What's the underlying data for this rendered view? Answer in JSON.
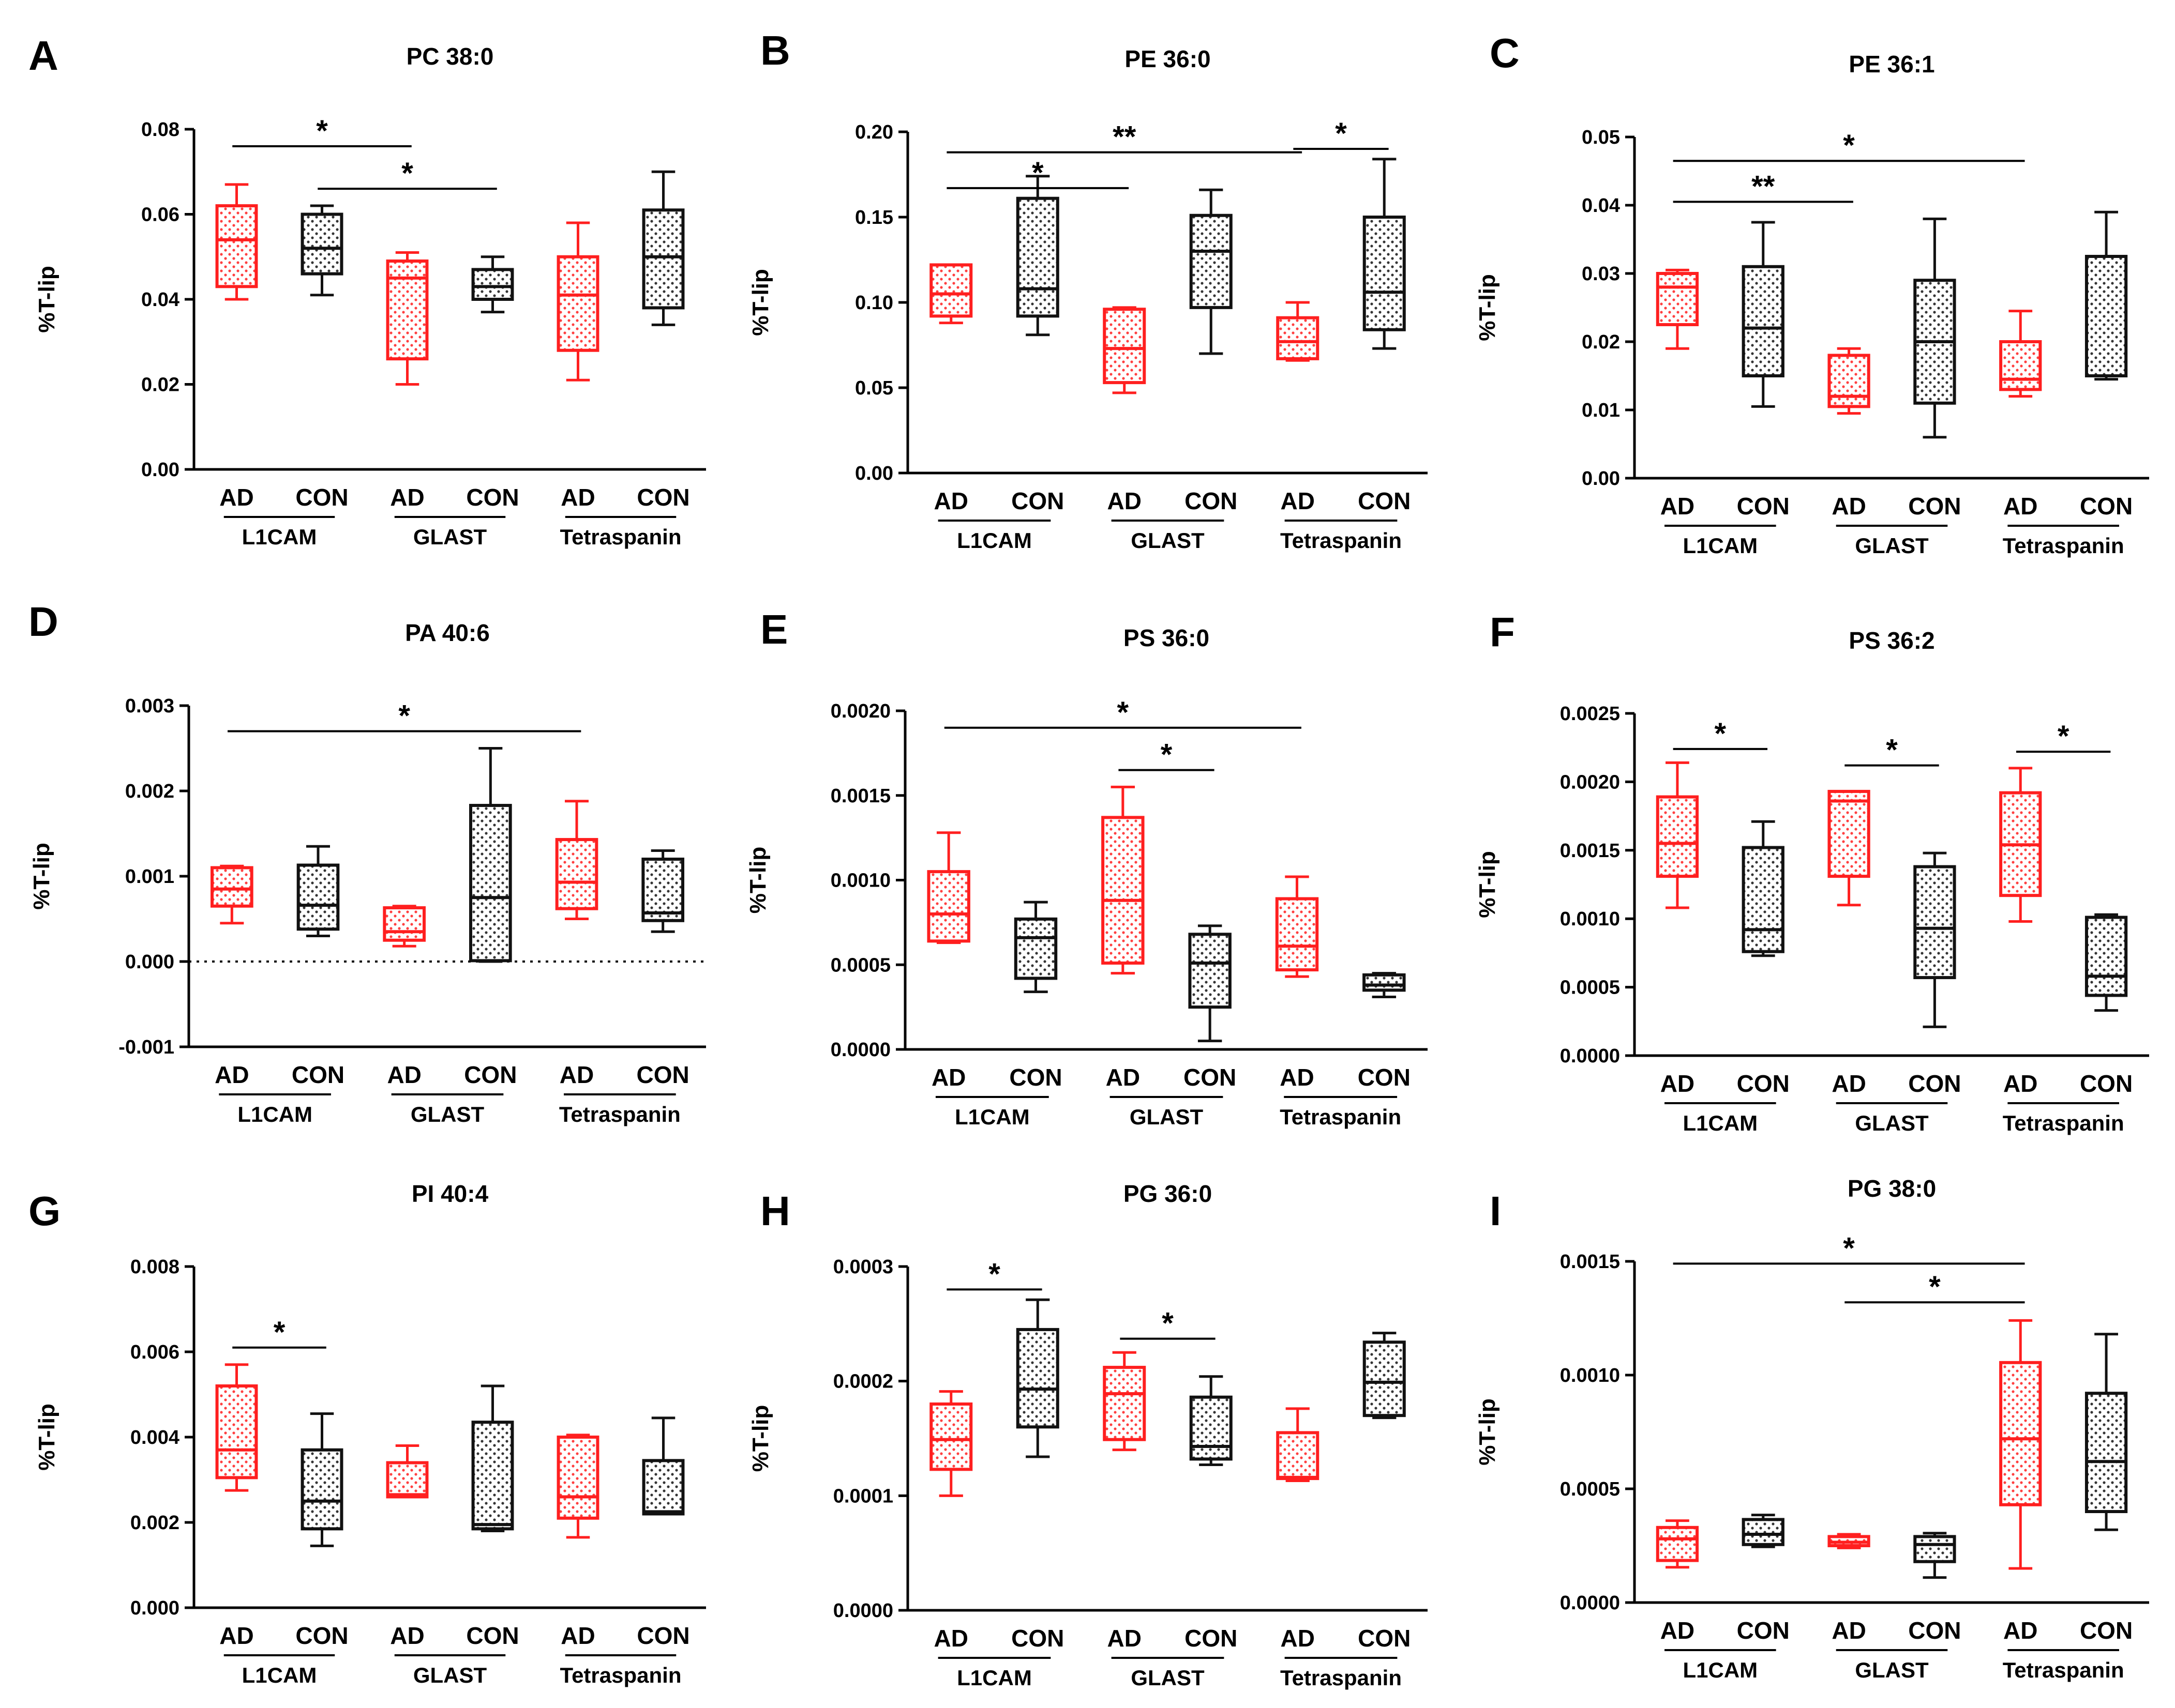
{
  "colors": {
    "ad": "#ff1f1f",
    "con": "#111111",
    "axis": "#000000"
  },
  "chart_data": [
    {
      "letter": "A",
      "title": "PC 38:0",
      "type": "box",
      "ylabel": "%T-lip",
      "ylim": [
        0,
        0.08
      ],
      "yticks": [
        "0.00",
        "0.02",
        "0.04",
        "0.06",
        "0.08"
      ],
      "tickvals": [
        0,
        0.02,
        0.04,
        0.06,
        0.08
      ],
      "categories": [
        "AD",
        "CON",
        "AD",
        "CON",
        "AD",
        "CON"
      ],
      "groups": [
        "L1CAM",
        "GLAST",
        "Tetraspanin"
      ],
      "boxes": [
        {
          "min": 0.04,
          "q1": 0.043,
          "median": 0.054,
          "q3": 0.062,
          "max": 0.067
        },
        {
          "min": 0.041,
          "q1": 0.046,
          "median": 0.052,
          "q3": 0.06,
          "max": 0.062
        },
        {
          "min": 0.02,
          "q1": 0.026,
          "median": 0.045,
          "q3": 0.049,
          "max": 0.051
        },
        {
          "min": 0.037,
          "q1": 0.04,
          "median": 0.043,
          "q3": 0.047,
          "max": 0.05
        },
        {
          "min": 0.021,
          "q1": 0.028,
          "median": 0.041,
          "q3": 0.05,
          "max": 0.058
        },
        {
          "min": 0.034,
          "q1": 0.038,
          "median": 0.05,
          "q3": 0.061,
          "max": 0.07
        }
      ],
      "sig": [
        {
          "from": 0,
          "to": 2,
          "y": 0.076,
          "label": "*"
        },
        {
          "from": 1,
          "to": 3,
          "y": 0.066,
          "label": "*"
        }
      ]
    },
    {
      "letter": "B",
      "title": "PE 36:0",
      "type": "box",
      "ylabel": "%T-lip",
      "ylim": [
        0,
        0.2
      ],
      "yticks": [
        "0.00",
        "0.05",
        "0.10",
        "0.15",
        "0.20"
      ],
      "tickvals": [
        0,
        0.05,
        0.1,
        0.15,
        0.2
      ],
      "categories": [
        "AD",
        "CON",
        "AD",
        "CON",
        "AD",
        "CON"
      ],
      "groups": [
        "L1CAM",
        "GLAST",
        "Tetraspanin"
      ],
      "boxes": [
        {
          "min": 0.088,
          "q1": 0.092,
          "median": 0.105,
          "q3": 0.122,
          "max": 0.122
        },
        {
          "min": 0.081,
          "q1": 0.092,
          "median": 0.108,
          "q3": 0.161,
          "max": 0.174
        },
        {
          "min": 0.047,
          "q1": 0.053,
          "median": 0.073,
          "q3": 0.096,
          "max": 0.097
        },
        {
          "min": 0.07,
          "q1": 0.097,
          "median": 0.13,
          "q3": 0.151,
          "max": 0.166
        },
        {
          "min": 0.066,
          "q1": 0.067,
          "median": 0.077,
          "q3": 0.091,
          "max": 0.1
        },
        {
          "min": 0.073,
          "q1": 0.084,
          "median": 0.106,
          "q3": 0.15,
          "max": 0.184
        }
      ],
      "sig": [
        {
          "from": 0,
          "to": 4,
          "y": 0.188,
          "label": "**"
        },
        {
          "from": 0,
          "to": 2,
          "y": 0.167,
          "label": "*"
        },
        {
          "from": 4,
          "to": 5,
          "y": 0.19,
          "label": "*"
        }
      ]
    },
    {
      "letter": "C",
      "title": "PE 36:1",
      "type": "box",
      "ylabel": "%T-lip",
      "ylim": [
        0,
        0.05
      ],
      "yticks": [
        "0.00",
        "0.01",
        "0.02",
        "0.03",
        "0.04",
        "0.05"
      ],
      "tickvals": [
        0,
        0.01,
        0.02,
        0.03,
        0.04,
        0.05
      ],
      "categories": [
        "AD",
        "CON",
        "AD",
        "CON",
        "AD",
        "CON"
      ],
      "groups": [
        "L1CAM",
        "GLAST",
        "Tetraspanin"
      ],
      "boxes": [
        {
          "min": 0.019,
          "q1": 0.0225,
          "median": 0.028,
          "q3": 0.03,
          "max": 0.0305
        },
        {
          "min": 0.0105,
          "q1": 0.015,
          "median": 0.022,
          "q3": 0.031,
          "max": 0.0375
        },
        {
          "min": 0.0095,
          "q1": 0.0105,
          "median": 0.012,
          "q3": 0.018,
          "max": 0.019
        },
        {
          "min": 0.006,
          "q1": 0.011,
          "median": 0.02,
          "q3": 0.029,
          "max": 0.038
        },
        {
          "min": 0.012,
          "q1": 0.013,
          "median": 0.0145,
          "q3": 0.02,
          "max": 0.0245
        },
        {
          "min": 0.0145,
          "q1": 0.015,
          "median": 0.015,
          "q3": 0.0325,
          "max": 0.039
        }
      ],
      "sig": [
        {
          "from": 0,
          "to": 4,
          "y": 0.0465,
          "label": "*"
        },
        {
          "from": 0,
          "to": 2,
          "y": 0.0405,
          "label": "**"
        }
      ]
    },
    {
      "letter": "D",
      "title": "PA 40:6",
      "type": "box",
      "ylabel": "%T-lip",
      "zero_line": true,
      "ylim": [
        -0.001,
        0.003
      ],
      "yticks": [
        "-0.001",
        "0.000",
        "0.001",
        "0.002",
        "0.003"
      ],
      "tickvals": [
        -0.001,
        0,
        0.001,
        0.002,
        0.003
      ],
      "categories": [
        "AD",
        "CON",
        "AD",
        "CON",
        "AD",
        "CON"
      ],
      "groups": [
        "L1CAM",
        "GLAST",
        "Tetraspanin"
      ],
      "boxes": [
        {
          "min": 0.00045,
          "q1": 0.00065,
          "median": 0.00085,
          "q3": 0.0011,
          "max": 0.00112
        },
        {
          "min": 0.0003,
          "q1": 0.00038,
          "median": 0.00066,
          "q3": 0.00113,
          "max": 0.00135
        },
        {
          "min": 0.00018,
          "q1": 0.00025,
          "median": 0.00035,
          "q3": 0.00063,
          "max": 0.00065
        },
        {
          "min": 0.0,
          "q1": 1e-05,
          "median": 0.00075,
          "q3": 0.00183,
          "max": 0.0025
        },
        {
          "min": 0.0005,
          "q1": 0.00062,
          "median": 0.00093,
          "q3": 0.00143,
          "max": 0.00188
        },
        {
          "min": 0.00035,
          "q1": 0.00048,
          "median": 0.00057,
          "q3": 0.0012,
          "max": 0.0013
        }
      ],
      "sig": [
        {
          "from": 0,
          "to": 4,
          "y": 0.0027,
          "label": "*"
        }
      ]
    },
    {
      "letter": "E",
      "title": "PS 36:0",
      "type": "box",
      "ylabel": "%T-lip",
      "ylim": [
        0,
        0.002
      ],
      "yticks": [
        "0.0000",
        "0.0005",
        "0.0010",
        "0.0015",
        "0.0020"
      ],
      "tickvals": [
        0,
        0.0005,
        0.001,
        0.0015,
        0.002
      ],
      "categories": [
        "AD",
        "CON",
        "AD",
        "CON",
        "AD",
        "CON"
      ],
      "groups": [
        "L1CAM",
        "GLAST",
        "Tetraspanin"
      ],
      "boxes": [
        {
          "min": 0.00063,
          "q1": 0.00064,
          "median": 0.0008,
          "q3": 0.00105,
          "max": 0.00128
        },
        {
          "min": 0.00034,
          "q1": 0.00042,
          "median": 0.00066,
          "q3": 0.00077,
          "max": 0.00087
        },
        {
          "min": 0.00045,
          "q1": 0.00051,
          "median": 0.00088,
          "q3": 0.00137,
          "max": 0.00155
        },
        {
          "min": 5e-05,
          "q1": 0.00025,
          "median": 0.00051,
          "q3": 0.00068,
          "max": 0.00073
        },
        {
          "min": 0.00043,
          "q1": 0.00047,
          "median": 0.00061,
          "q3": 0.00089,
          "max": 0.00102
        },
        {
          "min": 0.00031,
          "q1": 0.00035,
          "median": 0.00038,
          "q3": 0.00044,
          "max": 0.00045
        }
      ],
      "sig": [
        {
          "from": 0,
          "to": 4,
          "y": 0.0019,
          "label": "*"
        },
        {
          "from": 2,
          "to": 3,
          "y": 0.00165,
          "label": "*"
        }
      ]
    },
    {
      "letter": "F",
      "title": "PS 36:2",
      "type": "box",
      "ylabel": "%T-lip",
      "ylim": [
        0,
        0.0025
      ],
      "yticks": [
        "0.0000",
        "0.0005",
        "0.0010",
        "0.0015",
        "0.0020",
        "0.0025"
      ],
      "tickvals": [
        0,
        0.0005,
        0.001,
        0.0015,
        0.002,
        0.0025
      ],
      "categories": [
        "AD",
        "CON",
        "AD",
        "CON",
        "AD",
        "CON"
      ],
      "groups": [
        "L1CAM",
        "GLAST",
        "Tetraspanin"
      ],
      "boxes": [
        {
          "min": 0.00108,
          "q1": 0.00131,
          "median": 0.00155,
          "q3": 0.00189,
          "max": 0.00214
        },
        {
          "min": 0.00073,
          "q1": 0.00076,
          "median": 0.00092,
          "q3": 0.00152,
          "max": 0.00171
        },
        {
          "min": 0.0011,
          "q1": 0.00131,
          "median": 0.00186,
          "q3": 0.00193,
          "max": 0.00193
        },
        {
          "min": 0.00021,
          "q1": 0.00057,
          "median": 0.00093,
          "q3": 0.00138,
          "max": 0.00148
        },
        {
          "min": 0.00098,
          "q1": 0.00117,
          "median": 0.00154,
          "q3": 0.00192,
          "max": 0.0021
        },
        {
          "min": 0.00033,
          "q1": 0.00044,
          "median": 0.00058,
          "q3": 0.00101,
          "max": 0.00103
        }
      ],
      "sig": [
        {
          "from": 0,
          "to": 1,
          "y": 0.00224,
          "label": "*"
        },
        {
          "from": 2,
          "to": 3,
          "y": 0.00212,
          "label": "*"
        },
        {
          "from": 4,
          "to": 5,
          "y": 0.00222,
          "label": "*"
        }
      ]
    },
    {
      "letter": "G",
      "title": "PI 40:4",
      "type": "box",
      "ylabel": "%T-lip",
      "ylim": [
        0,
        0.008
      ],
      "yticks": [
        "0.000",
        "0.002",
        "0.004",
        "0.006",
        "0.008"
      ],
      "tickvals": [
        0,
        0.002,
        0.004,
        0.006,
        0.008
      ],
      "categories": [
        "AD",
        "CON",
        "AD",
        "CON",
        "AD",
        "CON"
      ],
      "groups": [
        "L1CAM",
        "GLAST",
        "Tetraspanin"
      ],
      "boxes": [
        {
          "min": 0.00275,
          "q1": 0.00305,
          "median": 0.0037,
          "q3": 0.0052,
          "max": 0.0057
        },
        {
          "min": 0.00145,
          "q1": 0.00185,
          "median": 0.0025,
          "q3": 0.0037,
          "max": 0.00455
        },
        {
          "min": 0.0026,
          "q1": 0.0026,
          "median": 0.00265,
          "q3": 0.0034,
          "max": 0.0038
        },
        {
          "min": 0.0018,
          "q1": 0.00185,
          "median": 0.00195,
          "q3": 0.00435,
          "max": 0.0052
        },
        {
          "min": 0.00165,
          "q1": 0.0021,
          "median": 0.0026,
          "q3": 0.004,
          "max": 0.00405
        },
        {
          "min": 0.0022,
          "q1": 0.0022,
          "median": 0.00225,
          "q3": 0.00345,
          "max": 0.00445
        }
      ],
      "sig": [
        {
          "from": 0,
          "to": 1,
          "y": 0.0061,
          "label": "*"
        }
      ]
    },
    {
      "letter": "H",
      "title": "PG 36:0",
      "type": "box",
      "ylabel": "%T-lip",
      "ylim": [
        0,
        0.0003
      ],
      "yticks": [
        "0.0000",
        "0.0001",
        "0.0002",
        "0.0003"
      ],
      "tickvals": [
        0,
        0.0001,
        0.0002,
        0.0003
      ],
      "categories": [
        "AD",
        "CON",
        "AD",
        "CON",
        "AD",
        "CON"
      ],
      "groups": [
        "L1CAM",
        "GLAST",
        "Tetraspanin"
      ],
      "boxes": [
        {
          "min": 0.0001,
          "q1": 0.000123,
          "median": 0.000149,
          "q3": 0.00018,
          "max": 0.000191
        },
        {
          "min": 0.000134,
          "q1": 0.00016,
          "median": 0.000193,
          "q3": 0.000245,
          "max": 0.000271
        },
        {
          "min": 0.00014,
          "q1": 0.000149,
          "median": 0.000189,
          "q3": 0.000212,
          "max": 0.000225
        },
        {
          "min": 0.000127,
          "q1": 0.000132,
          "median": 0.000143,
          "q3": 0.000186,
          "max": 0.000204
        },
        {
          "min": 0.000113,
          "q1": 0.000115,
          "median": 0.000116,
          "q3": 0.000155,
          "max": 0.000176
        },
        {
          "min": 0.000168,
          "q1": 0.00017,
          "median": 0.000199,
          "q3": 0.000234,
          "max": 0.000242
        }
      ],
      "sig": [
        {
          "from": 0,
          "to": 1,
          "y": 0.00028,
          "label": "*"
        },
        {
          "from": 2,
          "to": 3,
          "y": 0.000237,
          "label": "*"
        }
      ]
    },
    {
      "letter": "I",
      "title": "PG 38:0",
      "type": "box",
      "ylabel": "%T-lip",
      "ylim": [
        0,
        0.0015
      ],
      "yticks": [
        "0.0000",
        "0.0005",
        "0.0010",
        "0.0015"
      ],
      "tickvals": [
        0,
        0.0005,
        0.001,
        0.0015
      ],
      "categories": [
        "AD",
        "CON",
        "AD",
        "CON",
        "AD",
        "CON"
      ],
      "groups": [
        "L1CAM",
        "GLAST",
        "Tetraspanin"
      ],
      "boxes": [
        {
          "min": 0.000155,
          "q1": 0.000185,
          "median": 0.00028,
          "q3": 0.00033,
          "max": 0.00036
        },
        {
          "min": 0.000245,
          "q1": 0.000255,
          "median": 0.0003,
          "q3": 0.000365,
          "max": 0.000385
        },
        {
          "min": 0.00024,
          "q1": 0.00025,
          "median": 0.000265,
          "q3": 0.00029,
          "max": 0.0003
        },
        {
          "min": 0.00011,
          "q1": 0.00018,
          "median": 0.000255,
          "q3": 0.00029,
          "max": 0.000305
        },
        {
          "min": 0.00015,
          "q1": 0.00043,
          "median": 0.00072,
          "q3": 0.001055,
          "max": 0.00124
        },
        {
          "min": 0.00032,
          "q1": 0.0004,
          "median": 0.00062,
          "q3": 0.00092,
          "max": 0.00118
        }
      ],
      "sig": [
        {
          "from": 0,
          "to": 4,
          "y": 0.00149,
          "label": "*"
        },
        {
          "from": 2,
          "to": 4,
          "y": 0.00132,
          "label": "*"
        }
      ]
    }
  ]
}
